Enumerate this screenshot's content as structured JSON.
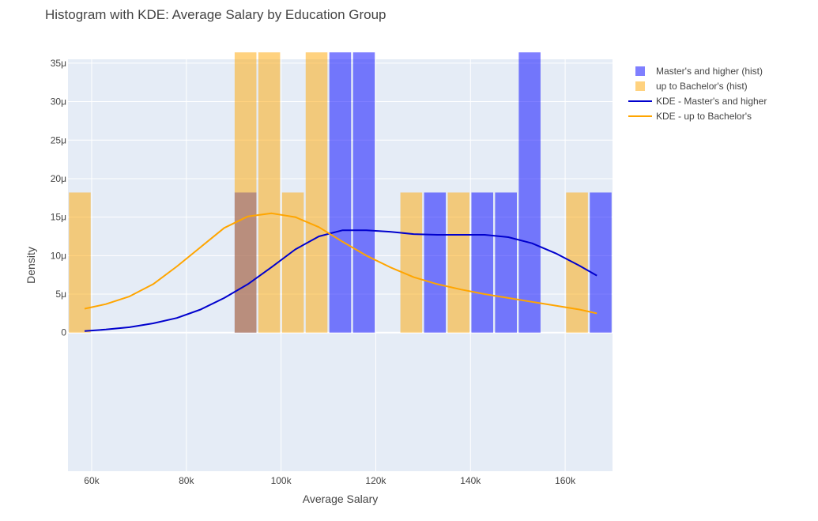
{
  "chart_data": {
    "type": "bar",
    "title": "Histogram with KDE: Average Salary by Education Group",
    "xlabel": "Average Salary",
    "ylabel": "Density",
    "xlim": [
      55000,
      170000
    ],
    "ylim": [
      -1.8e-05,
      3.55e-05
    ],
    "x_ticks": [
      {
        "v": 60000,
        "label": "60k"
      },
      {
        "v": 80000,
        "label": "80k"
      },
      {
        "v": 100000,
        "label": "100k"
      },
      {
        "v": 120000,
        "label": "120k"
      },
      {
        "v": 140000,
        "label": "140k"
      },
      {
        "v": 160000,
        "label": "160k"
      }
    ],
    "y_ticks": [
      {
        "v": 0,
        "label": "0"
      },
      {
        "v": 5e-06,
        "label": "5μ"
      },
      {
        "v": 1e-05,
        "label": "10μ"
      },
      {
        "v": 1.5e-05,
        "label": "15μ"
      },
      {
        "v": 2e-05,
        "label": "20μ"
      },
      {
        "v": 2.5e-05,
        "label": "25μ"
      },
      {
        "v": 3e-05,
        "label": "30μ"
      },
      {
        "v": 3.5e-05,
        "label": "35μ"
      }
    ],
    "bin_width": 5000,
    "series": [
      {
        "name": "Master's and higher (hist)",
        "kind": "histogram",
        "color": "#0000ff",
        "opacity": 0.5,
        "bins": [
          {
            "start": 90000,
            "value": 1.82e-05
          },
          {
            "start": 110000,
            "value": 3.64e-05
          },
          {
            "start": 115000,
            "value": 3.64e-05
          },
          {
            "start": 130000,
            "value": 1.82e-05
          },
          {
            "start": 140000,
            "value": 1.82e-05
          },
          {
            "start": 145000,
            "value": 1.82e-05
          },
          {
            "start": 150000,
            "value": 3.64e-05
          },
          {
            "start": 165000,
            "value": 1.82e-05
          }
        ]
      },
      {
        "name": "up to Bachelor's (hist)",
        "kind": "histogram",
        "color": "#ffa500",
        "opacity": 0.5,
        "bins": [
          {
            "start": 55000,
            "value": 1.82e-05
          },
          {
            "start": 90000,
            "value": 3.64e-05
          },
          {
            "start": 95000,
            "value": 3.64e-05
          },
          {
            "start": 100000,
            "value": 1.82e-05
          },
          {
            "start": 105000,
            "value": 3.64e-05
          },
          {
            "start": 125000,
            "value": 1.82e-05
          },
          {
            "start": 135000,
            "value": 1.82e-05
          },
          {
            "start": 160000,
            "value": 1.82e-05
          }
        ]
      },
      {
        "name": "KDE - Master's and higher",
        "kind": "line",
        "color": "#0000cd",
        "x": [
          58500,
          63000,
          68000,
          73000,
          78000,
          83000,
          88000,
          93000,
          98000,
          103000,
          108000,
          113000,
          118000,
          123000,
          128000,
          133000,
          138000,
          143000,
          148000,
          153000,
          158000,
          163000,
          166700
        ],
        "y": [
          2e-07,
          4e-07,
          7e-07,
          1.2e-06,
          1.9e-06,
          3e-06,
          4.5e-06,
          6.3e-06,
          8.5e-06,
          1.08e-05,
          1.25e-05,
          1.33e-05,
          1.33e-05,
          1.31e-05,
          1.28e-05,
          1.27e-05,
          1.27e-05,
          1.27e-05,
          1.24e-05,
          1.16e-05,
          1.03e-05,
          8.7e-06,
          7.4e-06
        ]
      },
      {
        "name": "KDE - up to Bachelor's",
        "kind": "line",
        "color": "#ffa500",
        "x": [
          58500,
          63000,
          68000,
          73000,
          78000,
          83000,
          88000,
          93000,
          98000,
          103000,
          108000,
          113000,
          118000,
          123000,
          128000,
          133000,
          138000,
          143000,
          148000,
          153000,
          158000,
          163000,
          166700
        ],
        "y": [
          3.1e-06,
          3.7e-06,
          4.7e-06,
          6.3e-06,
          8.6e-06,
          1.11e-05,
          1.36e-05,
          1.51e-05,
          1.55e-05,
          1.5e-05,
          1.37e-05,
          1.18e-05,
          1e-05,
          8.5e-06,
          7.2e-06,
          6.3e-06,
          5.6e-06,
          5e-06,
          4.5e-06,
          4e-06,
          3.5e-06,
          3e-06,
          2.5e-06
        ]
      }
    ],
    "legend": {
      "position": "top-right"
    },
    "grid": true,
    "colors": {
      "plot_bg": "#e5ecf6",
      "grid": "#ffffff"
    }
  }
}
